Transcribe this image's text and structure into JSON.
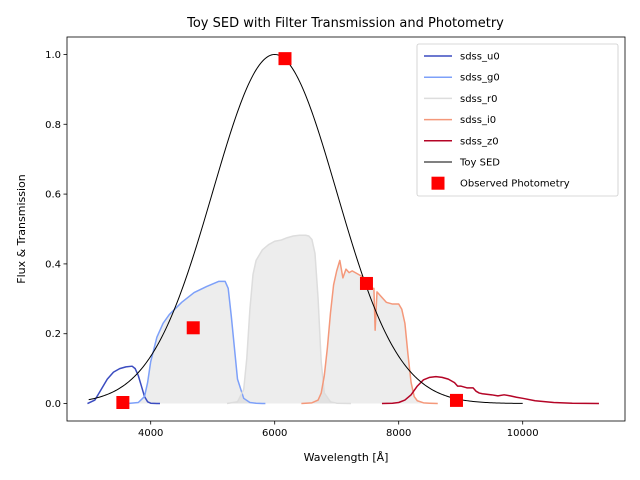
{
  "chart_data": {
    "type": "line",
    "title": "Toy SED with Filter Transmission and Photometry",
    "xlabel": "Wavelength [Å]",
    "ylabel": "Flux & Transmission",
    "xlim": [
      2650,
      11650
    ],
    "ylim": [
      -0.05,
      1.05
    ],
    "xticks": [
      4000,
      6000,
      8000,
      10000
    ],
    "xtick_labels": [
      "4000",
      "6000",
      "8000",
      "10000"
    ],
    "yticks": [
      0.0,
      0.2,
      0.4,
      0.6,
      0.8,
      1.0
    ],
    "ytick_labels": [
      "0.0",
      "0.2",
      "0.4",
      "0.6",
      "0.8",
      "1.0"
    ],
    "legend_position": "top-right",
    "filters": [
      {
        "name": "sdss_u0",
        "color": "#3b4cc0",
        "fill": false,
        "x": [
          2980,
          3100,
          3200,
          3300,
          3400,
          3500,
          3600,
          3700,
          3750,
          3800,
          3850,
          3900,
          3950,
          4000,
          4100,
          4150
        ],
        "y": [
          0.0,
          0.01,
          0.04,
          0.07,
          0.09,
          0.1,
          0.105,
          0.107,
          0.1,
          0.08,
          0.05,
          0.02,
          0.005,
          0.001,
          0.0,
          0.0
        ]
      },
      {
        "name": "sdss_g0",
        "color": "#7da0f9",
        "fill": true,
        "x": [
          3630,
          3800,
          3900,
          3950,
          4000,
          4100,
          4200,
          4300,
          4500,
          4700,
          4900,
          5100,
          5200,
          5250,
          5300,
          5400,
          5500,
          5600,
          5700,
          5800,
          5850
        ],
        "y": [
          0.0,
          0.003,
          0.02,
          0.06,
          0.12,
          0.19,
          0.23,
          0.255,
          0.29,
          0.318,
          0.335,
          0.35,
          0.35,
          0.33,
          0.25,
          0.07,
          0.015,
          0.003,
          0.001,
          0.0,
          0.0
        ]
      },
      {
        "name": "sdss_r0",
        "color": "#dddddd",
        "fill": true,
        "x": [
          5230,
          5400,
          5500,
          5550,
          5600,
          5650,
          5700,
          5800,
          5900,
          6000,
          6100,
          6200,
          6300,
          6400,
          6500,
          6550,
          6600,
          6650,
          6700,
          6750,
          6800,
          6900,
          7000,
          7230
        ],
        "y": [
          0.0,
          0.005,
          0.04,
          0.13,
          0.27,
          0.37,
          0.41,
          0.44,
          0.455,
          0.465,
          0.468,
          0.475,
          0.48,
          0.482,
          0.482,
          0.48,
          0.47,
          0.43,
          0.3,
          0.12,
          0.03,
          0.005,
          0.001,
          0.0
        ]
      },
      {
        "name": "sdss_i0",
        "color": "#f4987a",
        "fill": true,
        "x": [
          6430,
          6600,
          6700,
          6750,
          6800,
          6850,
          6900,
          6950,
          7000,
          7050,
          7100,
          7150,
          7200,
          7250,
          7300,
          7350,
          7400,
          7450,
          7500,
          7550,
          7600,
          7620,
          7650,
          7700,
          7800,
          7900,
          8000,
          8050,
          8100,
          8150,
          8200,
          8250,
          8300,
          8400,
          8500,
          8630
        ],
        "y": [
          0.0,
          0.002,
          0.01,
          0.03,
          0.08,
          0.16,
          0.26,
          0.34,
          0.38,
          0.41,
          0.36,
          0.385,
          0.375,
          0.38,
          0.375,
          0.37,
          0.365,
          0.35,
          0.34,
          0.33,
          0.33,
          0.21,
          0.32,
          0.31,
          0.29,
          0.285,
          0.285,
          0.27,
          0.23,
          0.14,
          0.06,
          0.02,
          0.008,
          0.002,
          0.001,
          0.0
        ]
      },
      {
        "name": "sdss_z0",
        "color": "#b40426",
        "fill": false,
        "x": [
          7730,
          7900,
          8000,
          8100,
          8200,
          8300,
          8400,
          8500,
          8600,
          8700,
          8800,
          8900,
          8950,
          9000,
          9100,
          9200,
          9250,
          9300,
          9350,
          9400,
          9500,
          9600,
          9700,
          9800,
          9900,
          10000,
          10200,
          10500,
          10800,
          11230
        ],
        "y": [
          0.0,
          0.001,
          0.003,
          0.01,
          0.025,
          0.05,
          0.068,
          0.075,
          0.077,
          0.075,
          0.07,
          0.06,
          0.05,
          0.05,
          0.045,
          0.045,
          0.035,
          0.03,
          0.028,
          0.027,
          0.025,
          0.022,
          0.025,
          0.022,
          0.018,
          0.015,
          0.008,
          0.003,
          0.001,
          0.0
        ]
      }
    ],
    "sed": {
      "name": "Toy SED",
      "color": "#000000",
      "center": 6000,
      "sigma": 1000,
      "x_range": [
        3000,
        10000
      ]
    },
    "photometry": {
      "name": "Observed Photometry",
      "color": "#ff0000",
      "x": [
        3551,
        4686,
        6166,
        7480,
        8932
      ],
      "y": [
        0.003,
        0.217,
        0.988,
        0.344,
        0.009
      ]
    }
  }
}
